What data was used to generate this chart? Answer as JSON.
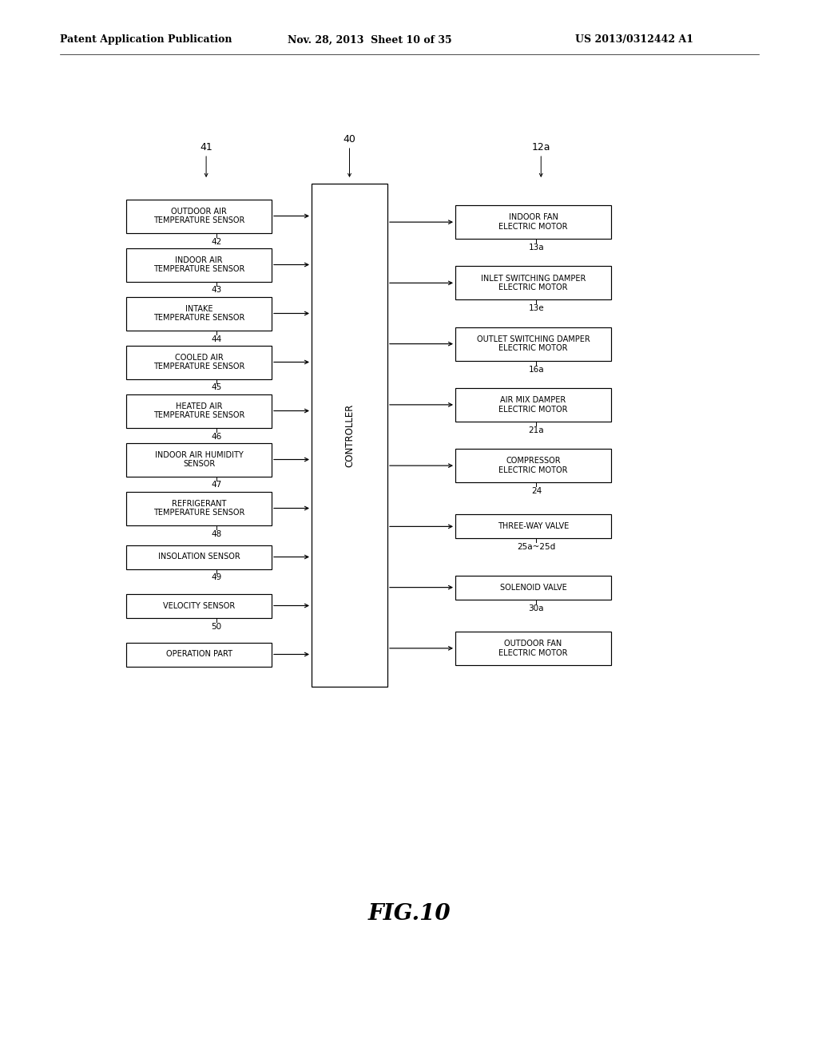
{
  "bg_color": "#ffffff",
  "header_left": "Patent Application Publication",
  "header_mid": "Nov. 28, 2013  Sheet 10 of 35",
  "header_right": "US 2013/0312442 A1",
  "fig_label": "FIG.10",
  "controller_label": "40",
  "left_group_label": "41",
  "right_group_label": "12a",
  "left_boxes": [
    {
      "text": "OUTDOOR AIR\nTEMPERATURE SENSOR",
      "label": "42"
    },
    {
      "text": "INDOOR AIR\nTEMPERATURE SENSOR",
      "label": "43"
    },
    {
      "text": "INTAKE\nTEMPERATURE SENSOR",
      "label": "44"
    },
    {
      "text": "COOLED AIR\nTEMPERATURE SENSOR",
      "label": "45"
    },
    {
      "text": "HEATED AIR\nTEMPERATURE SENSOR",
      "label": "46"
    },
    {
      "text": "INDOOR AIR HUMIDITY\nSENSOR",
      "label": "47"
    },
    {
      "text": "REFRIGERANT\nTEMPERATURE SENSOR",
      "label": "48"
    },
    {
      "text": "INSOLATION SENSOR",
      "label": "49"
    },
    {
      "text": "VELOCITY SENSOR",
      "label": "50"
    },
    {
      "text": "OPERATION PART",
      "label": ""
    }
  ],
  "right_boxes": [
    {
      "text": "INDOOR FAN\nELECTRIC MOTOR",
      "label": "13a"
    },
    {
      "text": "INLET SWITCHING DAMPER\nELECTRIC MOTOR",
      "label": "13e"
    },
    {
      "text": "OUTLET SWITCHING DAMPER\nELECTRIC MOTOR",
      "label": "16a"
    },
    {
      "text": "AIR MIX DAMPER\nELECTRIC MOTOR",
      "label": "21a"
    },
    {
      "text": "COMPRESSOR\nELECTRIC MOTOR",
      "label": "24"
    },
    {
      "text": "THREE-WAY VALVE",
      "label": "25a~25d"
    },
    {
      "text": "SOLENOID VALVE",
      "label": "30a"
    },
    {
      "text": "OUTDOOR FAN\nELECTRIC MOTOR",
      "label": ""
    }
  ],
  "controller_text": "CONTROLLER"
}
